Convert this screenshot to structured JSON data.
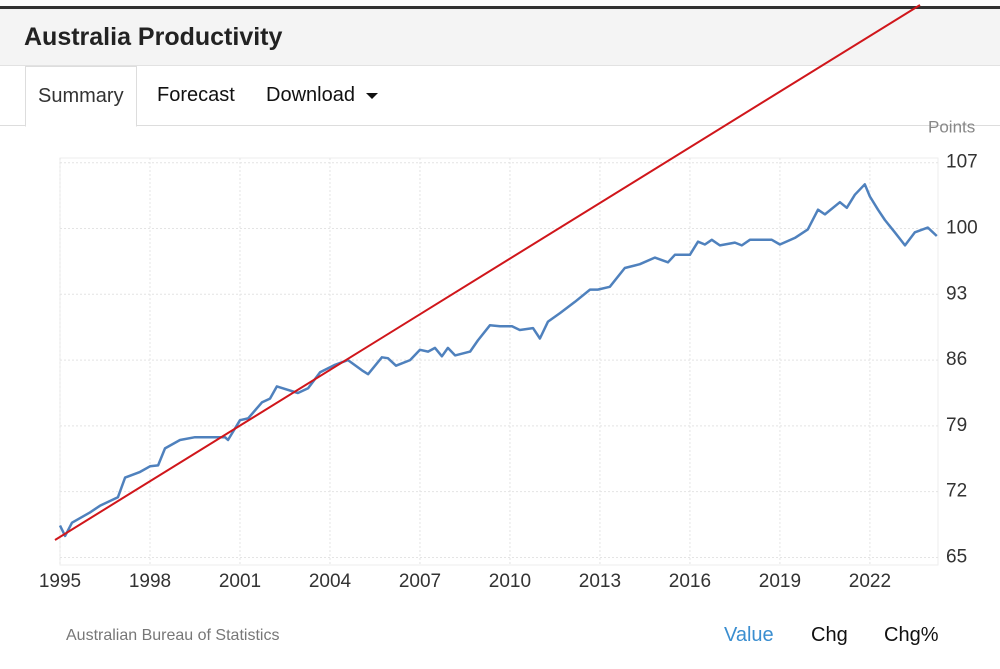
{
  "header": {
    "title": "Australia Productivity"
  },
  "tabs": [
    "Summary",
    "Forecast",
    "Download"
  ],
  "chart_data": {
    "type": "line",
    "ylabel": "Points",
    "x": [
      1995,
      1995.17,
      1995.4,
      1996,
      1996.33,
      1996.93,
      1997.17,
      1997.67,
      1998,
      1998.27,
      1998.5,
      1999,
      1999.5,
      2000,
      2000.5,
      2000.6,
      2001,
      2001.27,
      2001.73,
      2002,
      2002.23,
      2002.43,
      2002.93,
      2003.27,
      2003.67,
      2004.17,
      2004.6,
      2005.07,
      2005.27,
      2005.73,
      2005.93,
      2006.2,
      2006.67,
      2007,
      2007.27,
      2007.5,
      2007.73,
      2007.93,
      2008.17,
      2008.67,
      2008.93,
      2009.33,
      2009.67,
      2010.07,
      2010.33,
      2010.77,
      2011,
      2011.27,
      2011.67,
      2012.17,
      2012.67,
      2012.93,
      2013.33,
      2013.83,
      2014.33,
      2014.83,
      2015.27,
      2015.5,
      2016,
      2016.27,
      2016.5,
      2016.73,
      2017,
      2017.5,
      2017.73,
      2018,
      2018.73,
      2019,
      2019.5,
      2019.93,
      2020.27,
      2020.5,
      2021,
      2021.23,
      2021.5,
      2021.83,
      2022,
      2022.27,
      2022.5,
      2022.83,
      2023.17,
      2023.5,
      2023.93,
      2024.23
    ],
    "series": [
      {
        "name": "Productivity",
        "color": "#4f81bd",
        "values": [
          68.4,
          67.3,
          68.7,
          69.8,
          70.5,
          71.4,
          73.5,
          74.1,
          74.7,
          74.8,
          76.6,
          77.5,
          77.8,
          77.8,
          77.8,
          77.5,
          79.6,
          79.8,
          81.5,
          81.9,
          83.2,
          83.0,
          82.5,
          83.0,
          84.7,
          85.5,
          86.0,
          84.9,
          84.5,
          86.3,
          86.2,
          85.4,
          86.0,
          87.1,
          86.9,
          87.3,
          86.4,
          87.3,
          86.5,
          86.9,
          88.1,
          89.7,
          89.6,
          89.6,
          89.2,
          89.4,
          88.3,
          90.1,
          91.0,
          92.2,
          93.5,
          93.5,
          93.8,
          95.8,
          96.2,
          96.9,
          96.4,
          97.2,
          97.2,
          98.6,
          98.3,
          98.8,
          98.2,
          98.5,
          98.2,
          98.8,
          98.8,
          98.3,
          99.0,
          99.9,
          102.0,
          101.5,
          102.8,
          102.2,
          103.6,
          104.7,
          103.4,
          102.0,
          100.9,
          99.6,
          98.2,
          99.6,
          100.1,
          99.2
        ]
      }
    ],
    "xlim": [
      1995,
      2024.27
    ],
    "xticks": [
      1995,
      1998,
      2001,
      2004,
      2007,
      2010,
      2013,
      2016,
      2019,
      2022
    ],
    "ylim": [
      64.2,
      107.5
    ],
    "yticks": [
      65,
      72,
      79,
      86,
      93,
      100,
      107
    ],
    "grid": true
  },
  "footer": {
    "source": "Australian Bureau of Statistics",
    "links": [
      "Value",
      "Chg",
      "Chg%"
    ]
  }
}
